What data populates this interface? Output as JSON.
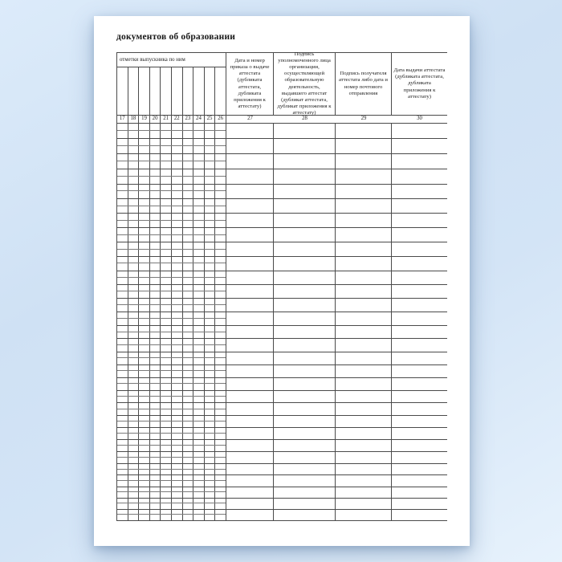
{
  "page": {
    "title": "документов об образовании",
    "background_color": "#d3e4f6",
    "sheet_color": "#ffffff",
    "line_color": "#4a4a4a",
    "subline_color": "#7a7a7a"
  },
  "table": {
    "marks_caption": "отметки выпускника по ним",
    "marks_column_numbers": [
      "17",
      "18",
      "19",
      "20",
      "21",
      "22",
      "23",
      "24",
      "25",
      "26"
    ],
    "columns": [
      {
        "number": "27",
        "header": "Дата и номер приказа о выдаче аттестата (дубликата аттестата, дубликата приложения к аттестату)"
      },
      {
        "number": "28",
        "header": "Подпись уполномоченного лица организации, осуществляющей образовательную деятельность, выдавшего аттестат (дубликат аттестата, дубликат приложения к аттестату)"
      },
      {
        "number": "29",
        "header": "Подпись получателя аттестата либо дата и номер почтового отправления"
      },
      {
        "number": "30",
        "header": "Дата выдачи аттестата (дубликата аттестата, дубликата приложения к аттестату)"
      }
    ],
    "body_rows": 30
  }
}
